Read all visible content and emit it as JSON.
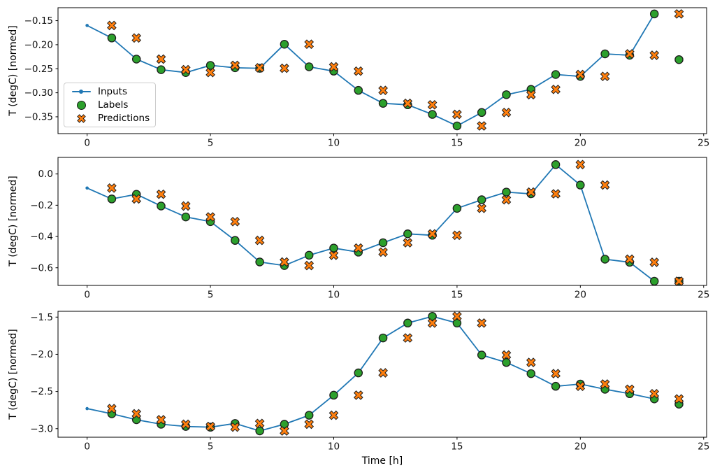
{
  "figure": {
    "xlabel": "Time [h]",
    "x_tick_values": [
      0,
      5,
      10,
      15,
      20,
      25
    ],
    "x_tick_labels": [
      "0",
      "5",
      "10",
      "15",
      "20",
      "25"
    ],
    "legend": {
      "items": [
        "Inputs",
        "Labels",
        "Predictions"
      ]
    },
    "colors": {
      "inputs_line": "#1f77b4",
      "labels_fill": "#2ca02c",
      "predictions_fill": "#ff7f0e",
      "marker_edge": "#1c1c1c",
      "axis": "#000000",
      "tick_text": "#111111"
    }
  },
  "chart_data": [
    {
      "type": "line",
      "title": "",
      "xlabel": "",
      "ylabel": "T (degC) [normed]",
      "xlim": [
        -1.18,
        25.12
      ],
      "ylim": [
        -0.385,
        -0.123
      ],
      "yticks": [
        -0.15,
        -0.2,
        -0.25,
        -0.3,
        -0.35
      ],
      "ytick_labels": [
        "−0.15",
        "−0.20",
        "−0.25",
        "−0.30",
        "−0.35"
      ],
      "grid": false,
      "legend_position": "center left",
      "series": [
        {
          "name": "Inputs",
          "style": "line_with_dots",
          "x": [
            0,
            1,
            2,
            3,
            4,
            5,
            6,
            7,
            8,
            9,
            10,
            11,
            12,
            13,
            14,
            15,
            16,
            17,
            18,
            19,
            20,
            21,
            22,
            23
          ],
          "y": [
            -0.16,
            -0.186,
            -0.23,
            -0.252,
            -0.258,
            -0.243,
            -0.248,
            -0.249,
            -0.199,
            -0.246,
            -0.255,
            -0.295,
            -0.322,
            -0.325,
            -0.345,
            -0.369,
            -0.341,
            -0.304,
            -0.293,
            -0.262,
            -0.266,
            -0.219,
            -0.222,
            -0.136
          ]
        },
        {
          "name": "Labels",
          "style": "circle",
          "x": [
            1,
            2,
            3,
            4,
            5,
            6,
            7,
            8,
            9,
            10,
            11,
            12,
            13,
            14,
            15,
            16,
            17,
            18,
            19,
            20,
            21,
            22,
            23,
            24
          ],
          "y": [
            -0.186,
            -0.23,
            -0.252,
            -0.258,
            -0.243,
            -0.248,
            -0.249,
            -0.199,
            -0.246,
            -0.255,
            -0.295,
            -0.322,
            -0.325,
            -0.345,
            -0.369,
            -0.341,
            -0.304,
            -0.293,
            -0.262,
            -0.266,
            -0.219,
            -0.222,
            -0.136,
            -0.231
          ]
        },
        {
          "name": "Predictions",
          "style": "x_marker",
          "x": [
            1,
            2,
            3,
            4,
            5,
            6,
            7,
            8,
            9,
            10,
            11,
            12,
            13,
            14,
            15,
            16,
            17,
            18,
            19,
            20,
            21,
            22,
            23,
            24
          ],
          "y": [
            -0.16,
            -0.186,
            -0.23,
            -0.252,
            -0.258,
            -0.243,
            -0.248,
            -0.249,
            -0.199,
            -0.246,
            -0.255,
            -0.295,
            -0.322,
            -0.325,
            -0.345,
            -0.369,
            -0.341,
            -0.304,
            -0.293,
            -0.262,
            -0.266,
            -0.219,
            -0.222,
            -0.136
          ]
        }
      ]
    },
    {
      "type": "line",
      "title": "",
      "xlabel": "",
      "ylabel": "T (degC) [normed]",
      "xlim": [
        -1.18,
        25.12
      ],
      "ylim": [
        -0.713,
        0.106
      ],
      "yticks": [
        0.0,
        -0.2,
        -0.4,
        -0.6
      ],
      "ytick_labels": [
        "0.0",
        "−0.2",
        "−0.4",
        "−0.6"
      ],
      "grid": false,
      "series": [
        {
          "name": "Inputs",
          "style": "line_with_dots",
          "x": [
            0,
            1,
            2,
            3,
            4,
            5,
            6,
            7,
            8,
            9,
            10,
            11,
            12,
            13,
            14,
            15,
            16,
            17,
            18,
            19,
            20,
            21,
            22,
            23
          ],
          "y": [
            -0.09,
            -0.16,
            -0.13,
            -0.205,
            -0.275,
            -0.305,
            -0.425,
            -0.563,
            -0.586,
            -0.52,
            -0.474,
            -0.5,
            -0.44,
            -0.383,
            -0.392,
            -0.22,
            -0.165,
            -0.116,
            -0.127,
            0.06,
            -0.071,
            -0.545,
            -0.565,
            -0.686
          ]
        },
        {
          "name": "Labels",
          "style": "circle",
          "x": [
            1,
            2,
            3,
            4,
            5,
            6,
            7,
            8,
            9,
            10,
            11,
            12,
            13,
            14,
            15,
            16,
            17,
            18,
            19,
            20,
            21,
            22,
            23,
            24
          ],
          "y": [
            -0.16,
            -0.13,
            -0.205,
            -0.275,
            -0.305,
            -0.425,
            -0.563,
            -0.586,
            -0.52,
            -0.474,
            -0.5,
            -0.44,
            -0.383,
            -0.392,
            -0.22,
            -0.165,
            -0.116,
            -0.127,
            0.06,
            -0.071,
            -0.545,
            -0.565,
            -0.686,
            -0.686
          ]
        },
        {
          "name": "Predictions",
          "style": "x_marker",
          "x": [
            1,
            2,
            3,
            4,
            5,
            6,
            7,
            8,
            9,
            10,
            11,
            12,
            13,
            14,
            15,
            16,
            17,
            18,
            19,
            20,
            21,
            22,
            23,
            24
          ],
          "y": [
            -0.09,
            -0.16,
            -0.13,
            -0.205,
            -0.275,
            -0.305,
            -0.425,
            -0.563,
            -0.586,
            -0.52,
            -0.474,
            -0.5,
            -0.44,
            -0.383,
            -0.392,
            -0.22,
            -0.165,
            -0.116,
            -0.127,
            0.06,
            -0.071,
            -0.545,
            -0.565,
            -0.686
          ]
        }
      ]
    },
    {
      "type": "line",
      "title": "",
      "xlabel": "Time [h]",
      "ylabel": "T (degC) [normed]",
      "xlim": [
        -1.18,
        25.12
      ],
      "ylim": [
        -3.115,
        -1.422
      ],
      "yticks": [
        -1.5,
        -2.0,
        -2.5,
        -3.0
      ],
      "ytick_labels": [
        "−1.5",
        "−2.0",
        "−2.5",
        "−3.0"
      ],
      "grid": false,
      "series": [
        {
          "name": "Inputs",
          "style": "line_with_dots",
          "x": [
            0,
            1,
            2,
            3,
            4,
            5,
            6,
            7,
            8,
            9,
            10,
            11,
            12,
            13,
            14,
            15,
            16,
            17,
            18,
            19,
            20,
            21,
            22,
            23
          ],
          "y": [
            -2.73,
            -2.8,
            -2.88,
            -2.94,
            -2.97,
            -2.98,
            -2.93,
            -3.03,
            -2.94,
            -2.82,
            -2.55,
            -2.25,
            -1.78,
            -1.58,
            -1.49,
            -1.58,
            -2.01,
            -2.11,
            -2.26,
            -2.43,
            -2.4,
            -2.47,
            -2.53,
            -2.6
          ]
        },
        {
          "name": "Labels",
          "style": "circle",
          "x": [
            1,
            2,
            3,
            4,
            5,
            6,
            7,
            8,
            9,
            10,
            11,
            12,
            13,
            14,
            15,
            16,
            17,
            18,
            19,
            20,
            21,
            22,
            23,
            24
          ],
          "y": [
            -2.8,
            -2.88,
            -2.94,
            -2.97,
            -2.98,
            -2.93,
            -3.03,
            -2.94,
            -2.82,
            -2.55,
            -2.25,
            -1.78,
            -1.58,
            -1.49,
            -1.58,
            -2.01,
            -2.11,
            -2.26,
            -2.43,
            -2.4,
            -2.47,
            -2.53,
            -2.6,
            -2.67
          ]
        },
        {
          "name": "Predictions",
          "style": "x_marker",
          "x": [
            1,
            2,
            3,
            4,
            5,
            6,
            7,
            8,
            9,
            10,
            11,
            12,
            13,
            14,
            15,
            16,
            17,
            18,
            19,
            20,
            21,
            22,
            23,
            24
          ],
          "y": [
            -2.73,
            -2.8,
            -2.88,
            -2.94,
            -2.97,
            -2.98,
            -2.93,
            -3.03,
            -2.94,
            -2.82,
            -2.55,
            -2.25,
            -1.78,
            -1.58,
            -1.49,
            -1.58,
            -2.01,
            -2.11,
            -2.26,
            -2.43,
            -2.4,
            -2.47,
            -2.53,
            -2.6
          ]
        }
      ]
    }
  ]
}
